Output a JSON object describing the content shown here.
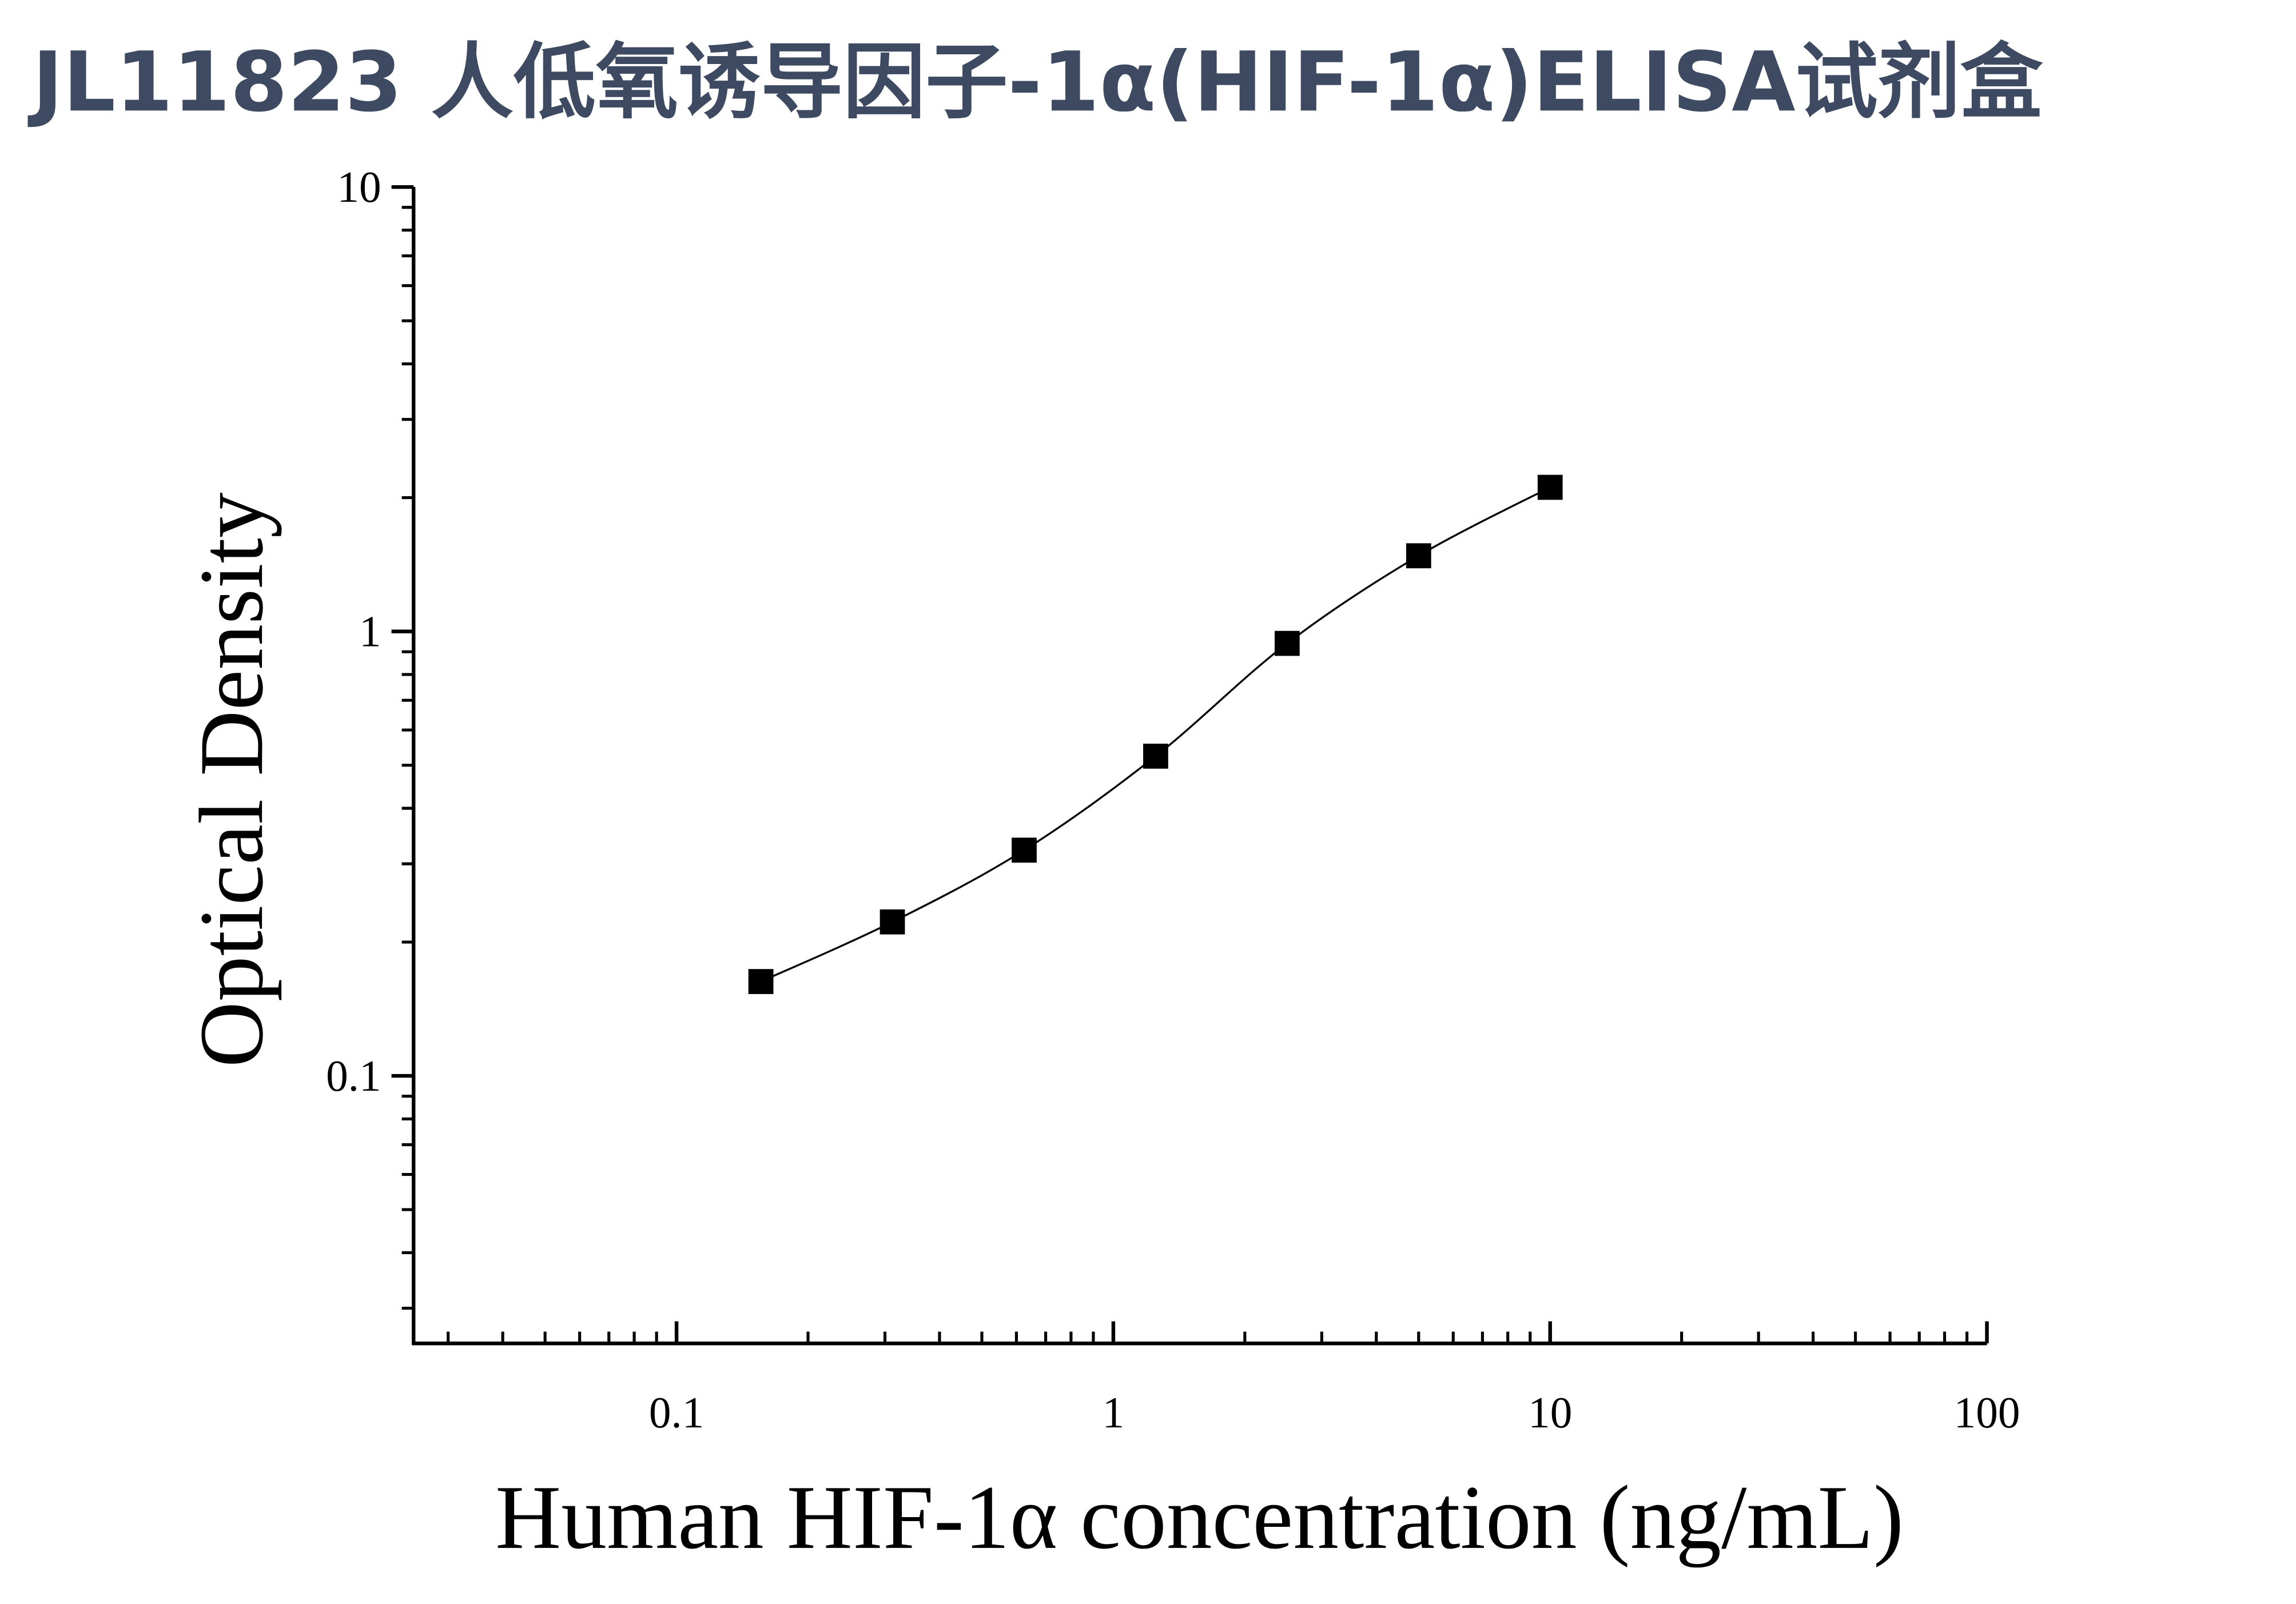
{
  "chart_data": {
    "type": "scatter",
    "title": "JL11823 人低氧诱导因子-1α(HIF-1α)ELISA试剂盒",
    "x_label": "Human HIF-1α concentration (ng/mL)",
    "y_label": "Optical Density",
    "x": [
      0.156,
      0.312,
      0.625,
      1.25,
      2.5,
      5,
      10
    ],
    "series": [
      {
        "color": "#000000",
        "values": [
          0.163,
          0.222,
          0.322,
          0.524,
          0.94,
          1.48,
          2.11
        ]
      }
    ],
    "xlim": [
      0.025,
      100
    ],
    "ylim": [
      0.025,
      10
    ],
    "xticks": [
      0.1,
      1,
      10,
      100
    ],
    "yticks": [
      0.1,
      1,
      10
    ],
    "xlog": true,
    "ylog": true,
    "minor_ticks": true,
    "fit_line": true
  }
}
